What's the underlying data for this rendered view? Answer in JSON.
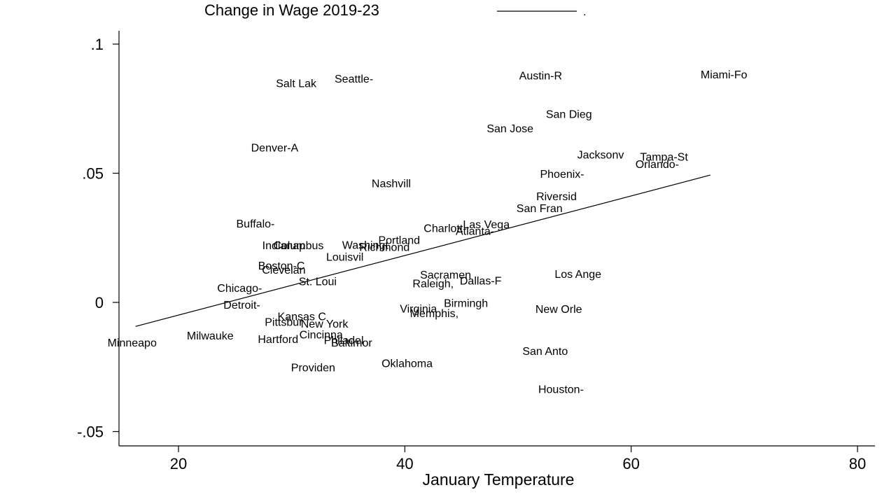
{
  "chart_data": {
    "type": "scatter",
    "title": "Change in Wage 2019-23",
    "legend": {
      "entries": [
        {
          "label": "."
        }
      ],
      "placement": "top"
    },
    "xlabel": "January Temperature",
    "ylabel": "",
    "xlim": [
      15,
      82
    ],
    "ylim": [
      -0.055,
      0.105
    ],
    "xticks": [
      20,
      40,
      60,
      80
    ],
    "xtick_labels": [
      "20",
      "40",
      "60",
      "80"
    ],
    "yticks": [
      -0.05,
      0,
      0.05,
      0.1
    ],
    "ytick_labels": [
      "-.05",
      "0",
      ".05",
      ".1"
    ],
    "grid": false,
    "fit_line": {
      "x": [
        16.2,
        67
      ],
      "y": [
        -0.0093,
        0.0493
      ]
    },
    "points": [
      {
        "label": "Salt Lak",
        "x": 30.4,
        "y": 0.085
      },
      {
        "label": "Seattle-",
        "x": 35.5,
        "y": 0.0867
      },
      {
        "label": "Austin-R",
        "x": 52,
        "y": 0.0879
      },
      {
        "label": "Miami-Fo",
        "x": 68.2,
        "y": 0.0884
      },
      {
        "label": "San Dieg",
        "x": 54.5,
        "y": 0.0731
      },
      {
        "label": "San Jose",
        "x": 49.3,
        "y": 0.0675
      },
      {
        "label": "Denver-A",
        "x": 28.5,
        "y": 0.06
      },
      {
        "label": "Jacksonv",
        "x": 57.3,
        "y": 0.0573
      },
      {
        "label": "Tampa-St",
        "x": 62.9,
        "y": 0.0565
      },
      {
        "label": "Orlando-",
        "x": 62.3,
        "y": 0.0536
      },
      {
        "label": "Phoenix-",
        "x": 53.9,
        "y": 0.0499
      },
      {
        "label": "Nashvill",
        "x": 38.8,
        "y": 0.0462
      },
      {
        "label": "Riversid",
        "x": 53.4,
        "y": 0.0412
      },
      {
        "label": "San Fran",
        "x": 51.9,
        "y": 0.0366
      },
      {
        "label": "Buffalo-",
        "x": 26.8,
        "y": 0.0306
      },
      {
        "label": "Charlott",
        "x": 43.4,
        "y": 0.0288
      },
      {
        "label": "Las Vega",
        "x": 47.2,
        "y": 0.0303
      },
      {
        "label": "Atlanta-",
        "x": 46.2,
        "y": 0.0278
      },
      {
        "label": "Portland",
        "x": 39.5,
        "y": 0.0243
      },
      {
        "label": "Indianap",
        "x": 29.3,
        "y": 0.0222
      },
      {
        "label": "Columbus",
        "x": 30.6,
        "y": 0.0222
      },
      {
        "label": "Washingt",
        "x": 36.5,
        "y": 0.0224
      },
      {
        "label": "Richmond",
        "x": 38.2,
        "y": 0.0216
      },
      {
        "label": "Louisvil",
        "x": 34.7,
        "y": 0.0178
      },
      {
        "label": "Boston-C",
        "x": 29.1,
        "y": 0.0144
      },
      {
        "label": "Clevelan",
        "x": 29.3,
        "y": 0.0128
      },
      {
        "label": "Sacramen",
        "x": 43.6,
        "y": 0.0109
      },
      {
        "label": "Los Ange",
        "x": 55.3,
        "y": 0.0111
      },
      {
        "label": "St. Loui",
        "x": 32.3,
        "y": 0.0082
      },
      {
        "label": "Raleigh,",
        "x": 42.5,
        "y": 0.0074
      },
      {
        "label": "Dallas-F",
        "x": 46.7,
        "y": 0.0085
      },
      {
        "label": "Chicago-",
        "x": 25.4,
        "y": 0.0057
      },
      {
        "label": "Detroit-",
        "x": 25.6,
        "y": -0.0008
      },
      {
        "label": "Birmingh",
        "x": 45.4,
        "y": -0.0002
      },
      {
        "label": "Virginia",
        "x": 41.2,
        "y": -0.0023
      },
      {
        "label": "Memphis,",
        "x": 42.6,
        "y": -0.0041
      },
      {
        "label": "New Orle",
        "x": 53.6,
        "y": -0.0025
      },
      {
        "label": "Kansas C",
        "x": 30.9,
        "y": -0.0053
      },
      {
        "label": "Pittsbur",
        "x": 29.3,
        "y": -0.0075
      },
      {
        "label": "New York",
        "x": 32.9,
        "y": -0.0081
      },
      {
        "label": "Cincinna",
        "x": 32.6,
        "y": -0.0123
      },
      {
        "label": "Hartford",
        "x": 28.8,
        "y": -0.0141
      },
      {
        "label": "Philadel",
        "x": 34.6,
        "y": -0.0145
      },
      {
        "label": "Baltimor",
        "x": 35.3,
        "y": -0.0155
      },
      {
        "label": "Milwauke",
        "x": 22.8,
        "y": -0.0128
      },
      {
        "label": "Minneapo",
        "x": 15.9,
        "y": -0.0155
      },
      {
        "label": "San Anto",
        "x": 52.4,
        "y": -0.0187
      },
      {
        "label": "Oklahoma",
        "x": 40.2,
        "y": -0.0235
      },
      {
        "label": "Providen",
        "x": 31.9,
        "y": -0.025
      },
      {
        "label": "Houston-",
        "x": 53.8,
        "y": -0.0335
      }
    ]
  }
}
